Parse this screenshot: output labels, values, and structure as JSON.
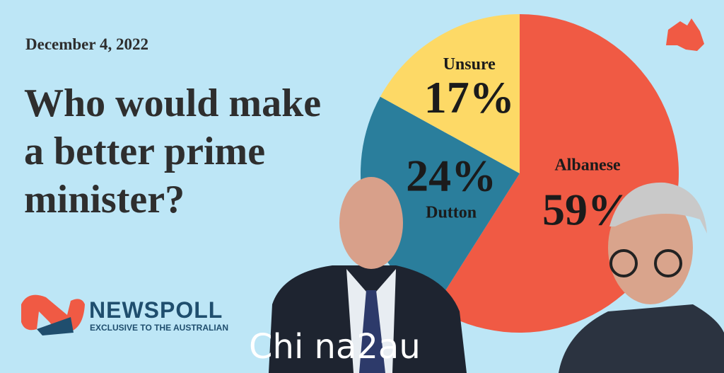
{
  "chart_data": {
    "type": "pie",
    "date": "December 4, 2022",
    "title": "Who would make a better prime minister?",
    "categories": [
      "Albanese",
      "Dutton",
      "Unsure"
    ],
    "values": [
      59,
      24,
      17
    ],
    "value_labels": [
      "59%",
      "24%",
      "17%"
    ],
    "colors": [
      "#f05a44",
      "#2a7e9c",
      "#fdd966"
    ],
    "start_angle": 0,
    "direction": "clockwise"
  },
  "branding": {
    "logo": "NEWSPOLL",
    "tagline": "EXCLUSIVE TO THE AUSTRALIAN",
    "watermark": "Chi na2au"
  }
}
